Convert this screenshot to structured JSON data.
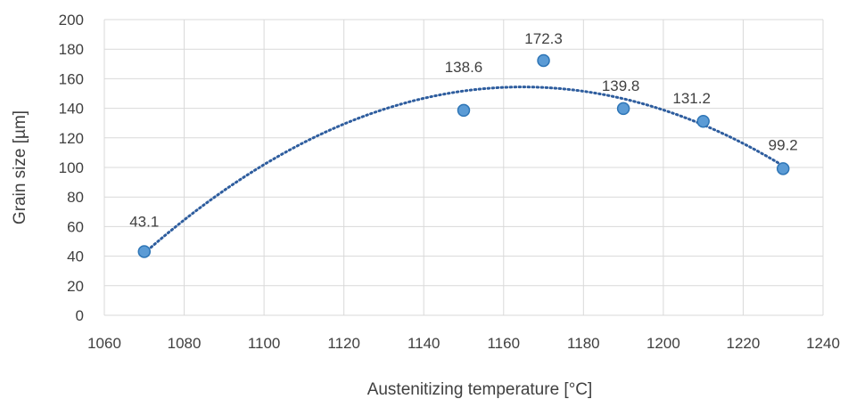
{
  "chart_data": {
    "type": "scatter",
    "title": "",
    "xlabel": "Austenitizing temperature [°C]",
    "ylabel": "Grain size [µm]",
    "xlim": [
      1060,
      1240
    ],
    "ylim": [
      0,
      200
    ],
    "xticks": [
      1060,
      1080,
      1100,
      1120,
      1140,
      1160,
      1180,
      1200,
      1220,
      1240
    ],
    "yticks": [
      0,
      20,
      40,
      60,
      80,
      100,
      120,
      140,
      160,
      180,
      200
    ],
    "grid": true,
    "legend": "none",
    "series": [
      {
        "x": [
          1070,
          1150,
          1170,
          1190,
          1210,
          1230
        ],
        "y": [
          43.1,
          138.6,
          172.3,
          139.8,
          131.2,
          99.2
        ],
        "labels": [
          "43.1",
          "138.6",
          "172.3",
          "139.8",
          "131.2",
          "99.2"
        ],
        "color": "#5b9bd5",
        "trendline": "polynomial-2"
      }
    ],
    "colors": {
      "marker": "#5b9bd5",
      "marker_edge": "#2e75b6",
      "trendline": "#2e5d9e",
      "grid": "#d9d9d9"
    }
  }
}
